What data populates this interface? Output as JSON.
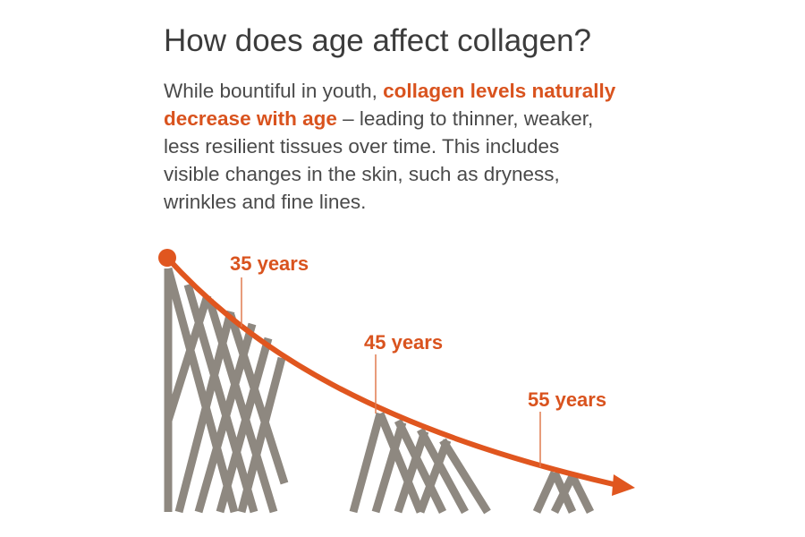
{
  "header": {
    "title": "How does age affect collagen?"
  },
  "intro": {
    "lead": "While bountiful in youth, ",
    "highlight": "collagen levels naturally decrease with age",
    "rest": " – leading to thinner, weaker, less resilient tissues over time. This includes visible changes in the skin, such as dryness, wrinkles and fine lines."
  },
  "diagram": {
    "labels": [
      "35 years",
      "45 years",
      "55 years"
    ]
  }
}
